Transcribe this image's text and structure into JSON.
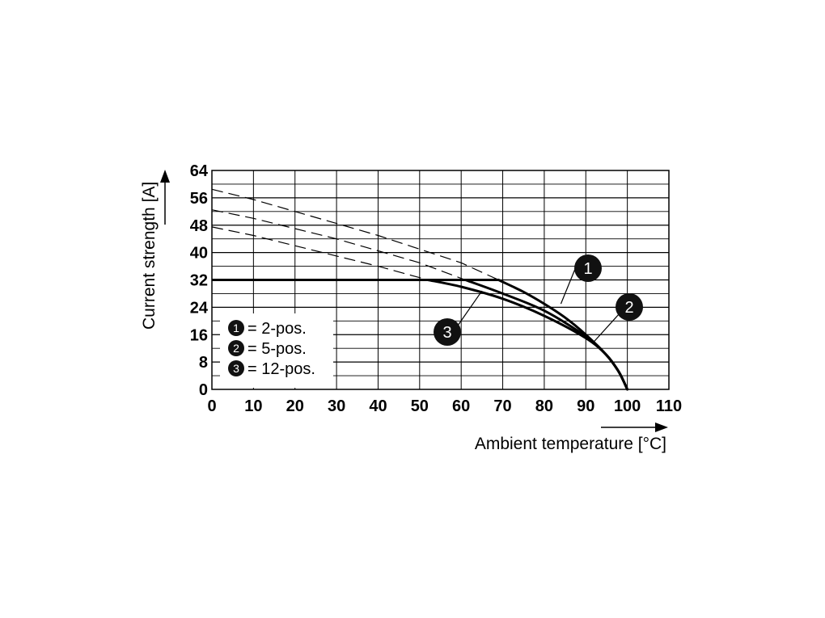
{
  "chart_data": {
    "type": "line",
    "xlabel": "Ambient temperature [°C]",
    "ylabel": "Current strength [A]",
    "xlim": [
      0,
      110
    ],
    "ylim": [
      0,
      64
    ],
    "x_ticks": [
      "0",
      "10",
      "20",
      "30",
      "40",
      "50",
      "60",
      "70",
      "80",
      "90",
      "100",
      "110"
    ],
    "y_ticks": [
      "0",
      "8",
      "16",
      "24",
      "32",
      "40",
      "48",
      "56",
      "64"
    ],
    "grid": true,
    "legend_position": "bottom-left",
    "series": [
      {
        "marker": "1",
        "name": "2-pos.",
        "rated": {
          "x": [
            0,
            69
          ],
          "y": [
            32,
            32
          ]
        },
        "derating": {
          "x": [
            69,
            75,
            80,
            85,
            90,
            95,
            98,
            100
          ],
          "y": [
            32,
            28.5,
            25,
            21,
            16,
            10,
            5,
            0
          ]
        },
        "extrapolated": {
          "x": [
            0,
            10,
            20,
            30,
            40,
            50,
            60,
            69
          ],
          "y": [
            58.5,
            55.5,
            52,
            48.5,
            45,
            41,
            37,
            32
          ]
        }
      },
      {
        "marker": "2",
        "name": "5-pos.",
        "rated": {
          "x": [
            0,
            61
          ],
          "y": [
            32,
            32
          ]
        },
        "derating": {
          "x": [
            61,
            70,
            80,
            90,
            95,
            98,
            100
          ],
          "y": [
            32,
            28,
            23,
            15.5,
            10,
            5,
            0
          ]
        },
        "extrapolated": {
          "x": [
            0,
            10,
            20,
            30,
            40,
            50,
            61
          ],
          "y": [
            52.5,
            50,
            47,
            44,
            40.5,
            37,
            32
          ]
        }
      },
      {
        "marker": "3",
        "name": "12-pos.",
        "rated": {
          "x": [
            0,
            52
          ],
          "y": [
            32,
            32
          ]
        },
        "derating": {
          "x": [
            52,
            60,
            70,
            80,
            90,
            95,
            98,
            100
          ],
          "y": [
            32,
            30,
            26.5,
            21.5,
            15,
            10,
            5,
            0
          ]
        },
        "extrapolated": {
          "x": [
            0,
            10,
            20,
            30,
            40,
            52
          ],
          "y": [
            47.5,
            45,
            42,
            39,
            36,
            32
          ]
        }
      }
    ],
    "legend": [
      {
        "marker": "1",
        "label": "= 2-pos."
      },
      {
        "marker": "2",
        "label": "= 5-pos."
      },
      {
        "marker": "3",
        "label": "= 12-pos."
      }
    ]
  }
}
